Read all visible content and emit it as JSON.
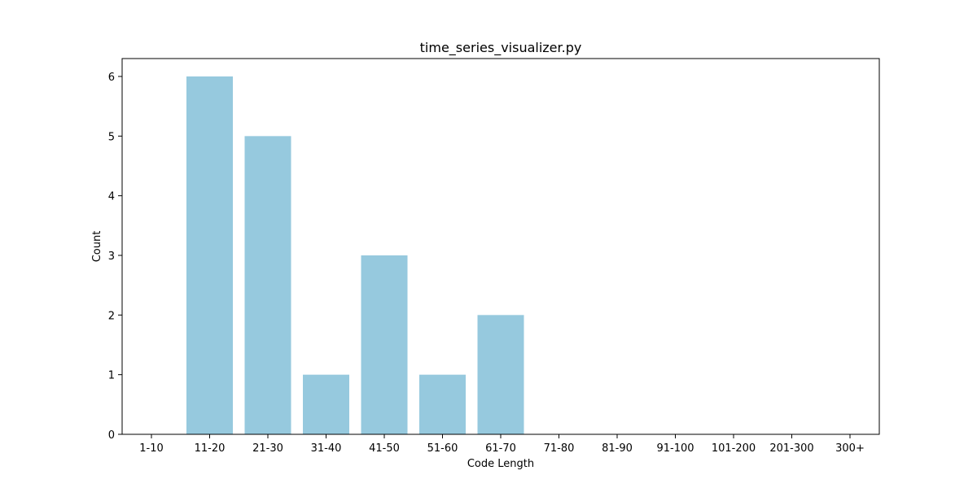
{
  "chart_data": {
    "type": "bar",
    "title": "time_series_visualizer.py",
    "xlabel": "Code Length",
    "ylabel": "Count",
    "categories": [
      "1-10",
      "11-20",
      "21-30",
      "31-40",
      "41-50",
      "51-60",
      "61-70",
      "71-80",
      "81-90",
      "91-100",
      "101-200",
      "201-300",
      "300+"
    ],
    "values": [
      0,
      6,
      5,
      1,
      3,
      1,
      2,
      0,
      0,
      0,
      0,
      0,
      0
    ],
    "ylim": [
      0,
      6.3
    ],
    "yticks": [
      0,
      1,
      2,
      3,
      4,
      5,
      6
    ],
    "grid": false,
    "colors": {
      "bar": "#96c9de",
      "axis": "#000000",
      "background": "#ffffff"
    }
  }
}
